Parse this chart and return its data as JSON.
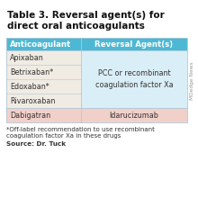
{
  "title_line1": "Table 3. Reversal agent(s) for",
  "title_line2": "direct oral anticoagulants",
  "col_headers": [
    "Anticoagulant",
    "Reversal Agent(s)"
  ],
  "header_bg": "#4db8d4",
  "header_text_color": "#ffffff",
  "rows": [
    {
      "anticoag": "Apixaban",
      "bg_left": "#f0ebe3",
      "bg_right": "#daeef7"
    },
    {
      "anticoag": "Betrixaban*",
      "bg_left": "#f0ebe3",
      "bg_right": "#daeef7"
    },
    {
      "anticoag": "Edoxaban*",
      "bg_left": "#f0ebe3",
      "bg_right": "#daeef7"
    },
    {
      "anticoag": "Rivaroxaban",
      "bg_left": "#f0ebe3",
      "bg_right": "#daeef7"
    },
    {
      "anticoag": "Dabigatran",
      "bg_left": "#f2d0ca",
      "bg_right": "#f2d0ca"
    }
  ],
  "merged_text": "PCC or recombinant\ncoagulation factor Xa",
  "dabigatran_reversal": "Idarucizumab",
  "footnote_line1": "*Off-label recommendation to use recombinant",
  "footnote_line2": "coagulation factor Xa in these drugs",
  "source": "Source: Dr. Tuck",
  "watermark": "MDedge News",
  "bg_color": "#ffffff",
  "outer_bg": "#f5f5f5",
  "title_color": "#111111",
  "cell_color": "#333333",
  "header_color": "#ffffff",
  "grid_color": "#b0c8d8",
  "title_fontsize": 7.5,
  "header_fontsize": 6.2,
  "cell_fontsize": 5.8,
  "footnote_fontsize": 5.0,
  "source_fontsize": 5.2
}
